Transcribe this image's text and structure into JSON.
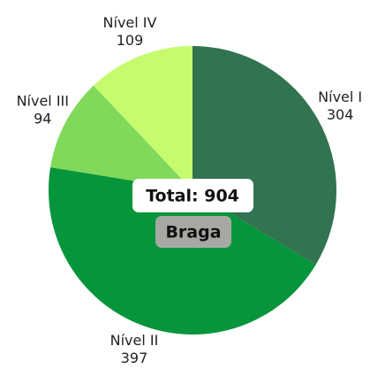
{
  "chart_data": {
    "type": "pie",
    "categories": [
      "Nível I",
      "Nível II",
      "Nível III",
      "Nível IV"
    ],
    "values": [
      304,
      397,
      94,
      109
    ],
    "colors": [
      "#327350",
      "#07953b",
      "#80d95a",
      "#c6fb70"
    ],
    "center_labels": [
      "Total: 904",
      "Braga"
    ]
  }
}
